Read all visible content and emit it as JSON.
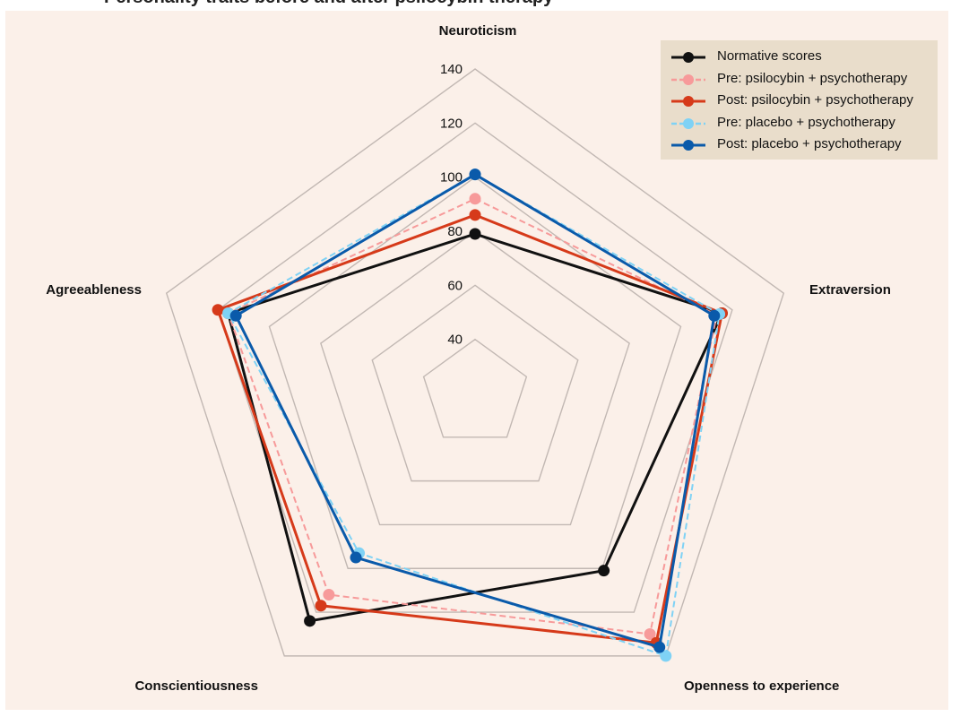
{
  "page": {
    "title_fragment": "Personality traits before and after psilocybin therapy"
  },
  "colors": {
    "background": "#fbf0e9",
    "grid": "#c2b8b3",
    "legend_background": "#e9ddcb"
  },
  "chart_data": {
    "type": "radar",
    "axes": [
      "Neuroticism",
      "Extraversion",
      "Openness to experience",
      "Conscientiousness",
      "Agreeableness"
    ],
    "rlim": [
      20,
      140
    ],
    "ticks": [
      40,
      60,
      80,
      100,
      120,
      140
    ],
    "series": [
      {
        "name": "Normative scores",
        "color": "#111111",
        "dashed": false,
        "values": [
          79,
          116,
          101,
          124,
          116
        ]
      },
      {
        "name": "Pre: psilocybin + psychotherapy",
        "color": "#f79a9a",
        "dashed": true,
        "values": [
          92,
          114,
          130,
          112,
          116
        ]
      },
      {
        "name": "Post: psilocybin + psychotherapy",
        "color": "#d63a1a",
        "dashed": false,
        "values": [
          86,
          116,
          134,
          117,
          120
        ]
      },
      {
        "name": "Pre: placebo + psychotherapy",
        "color": "#7fd2f5",
        "dashed": true,
        "values": [
          101,
          115,
          140,
          93,
          116
        ]
      },
      {
        "name": "Post: placebo + psychotherapy",
        "color": "#0a5aaa",
        "dashed": false,
        "values": [
          101,
          113,
          136,
          95,
          113
        ]
      }
    ]
  }
}
